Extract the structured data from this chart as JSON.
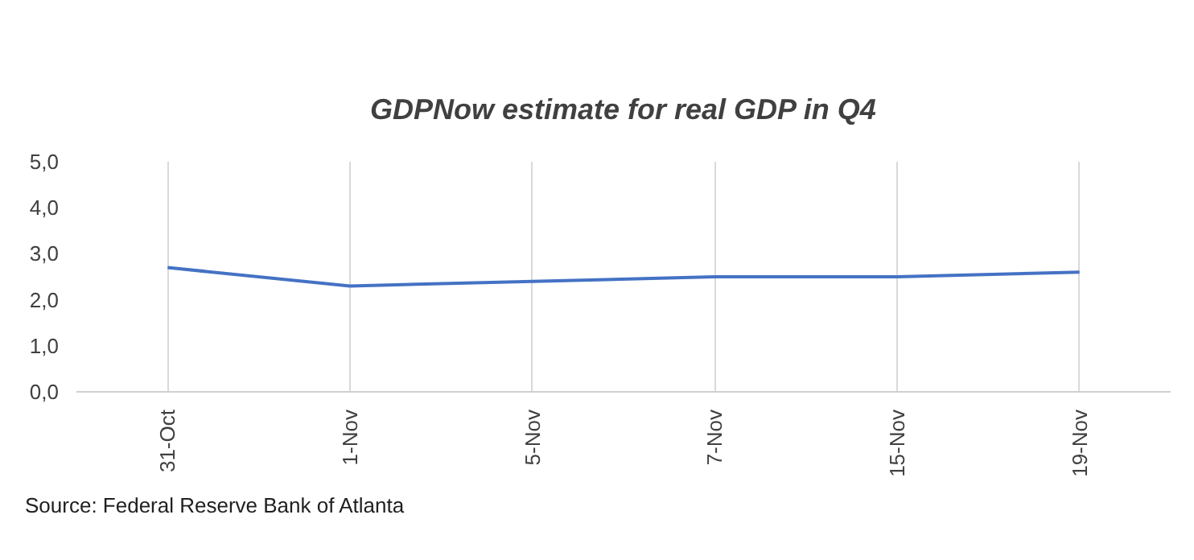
{
  "chart_data": {
    "type": "line",
    "title": "GDPNow estimate for real GDP in Q4",
    "categories": [
      "31-Oct",
      "1-Nov",
      "5-Nov",
      "7-Nov",
      "15-Nov",
      "19-Nov"
    ],
    "series": [
      {
        "color": "#4472c4",
        "values": [
          2.7,
          2.3,
          2.4,
          2.5,
          2.5,
          2.6
        ]
      }
    ],
    "ylim": [
      0,
      5
    ],
    "yticks": [
      {
        "value": 0,
        "label": "0,0"
      },
      {
        "value": 1,
        "label": "1,0"
      },
      {
        "value": 2,
        "label": "2,0"
      },
      {
        "value": 3,
        "label": "3,0"
      },
      {
        "value": 4,
        "label": "4,0"
      },
      {
        "value": 5,
        "label": "5,0"
      }
    ],
    "grid": "x",
    "marker": "none",
    "line_style": "solid",
    "annotations": [
      "Source: Federal Reserve Bank of Atlanta"
    ]
  }
}
